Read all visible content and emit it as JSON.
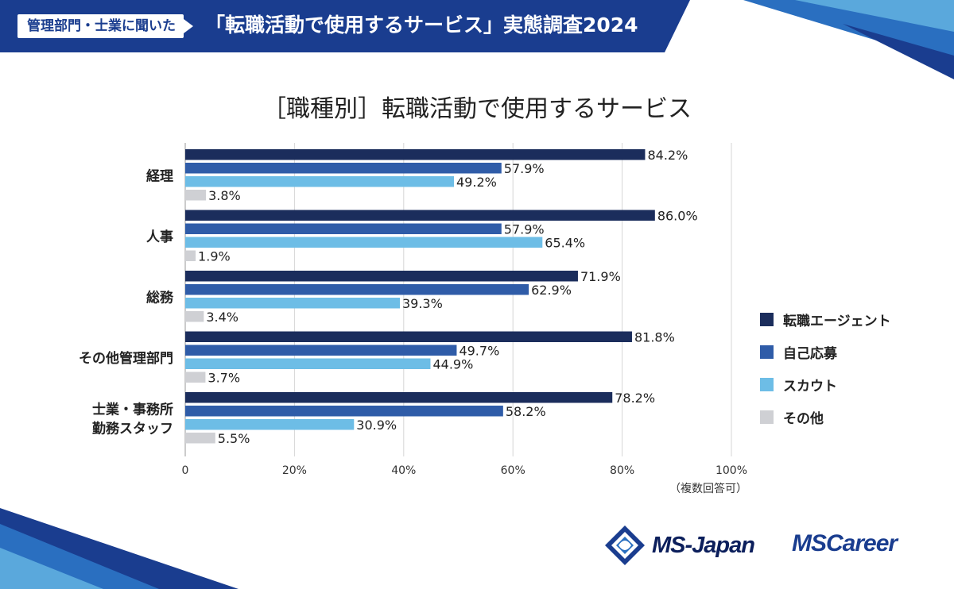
{
  "header": {
    "badge": "管理部門・士業に聞いた",
    "title": "「転職活動で使用するサービス」実態調査2024"
  },
  "colors": {
    "header_bg": "#1a3d8f",
    "agent": "#1b2d5c",
    "self": "#2f5ca8",
    "scout": "#6dbde6",
    "other": "#cfd0d4"
  },
  "chart_data": {
    "type": "bar",
    "orientation": "horizontal",
    "title": "［職種別］転職活動で使用するサービス",
    "categories": [
      [
        "経理"
      ],
      [
        "人事"
      ],
      [
        "総務"
      ],
      [
        "その他管理部門"
      ],
      [
        "士業・事務所",
        "勤務スタッフ"
      ]
    ],
    "series": [
      {
        "name": "転職エージェント",
        "color": "#1b2d5c",
        "values": [
          84.2,
          86.0,
          71.9,
          81.8,
          78.2
        ]
      },
      {
        "name": "自己応募",
        "color": "#2f5ca8",
        "values": [
          57.9,
          57.9,
          62.9,
          49.7,
          58.2
        ]
      },
      {
        "name": "スカウト",
        "color": "#6dbde6",
        "values": [
          49.2,
          65.4,
          39.3,
          44.9,
          30.9
        ]
      },
      {
        "name": "その他",
        "color": "#cfd0d4",
        "values": [
          3.8,
          1.9,
          3.4,
          3.7,
          5.5
        ]
      }
    ],
    "xlim": [
      0,
      100
    ],
    "xticks": [
      "0",
      "20%",
      "40%",
      "60%",
      "80%",
      "100%"
    ],
    "value_suffix": "%",
    "grid": true,
    "legend": "right",
    "note": "（複数回答可）"
  },
  "logos": {
    "msjapan": "MS-Japan",
    "mscareer": "MSCareer"
  }
}
